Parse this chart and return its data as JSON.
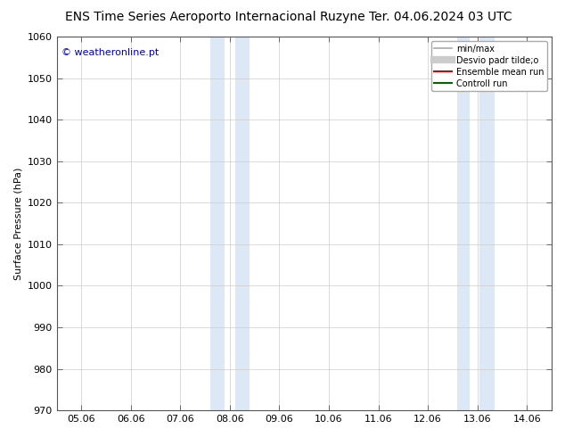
{
  "title_left": "ENS Time Series Aeroporto Internacional Ruzyne",
  "title_right": "Ter. 04.06.2024 03 UTC",
  "ylabel": "Surface Pressure (hPa)",
  "ylim": [
    970,
    1060
  ],
  "yticks": [
    970,
    980,
    990,
    1000,
    1010,
    1020,
    1030,
    1040,
    1050,
    1060
  ],
  "xtick_labels": [
    "05.06",
    "06.06",
    "07.06",
    "08.06",
    "09.06",
    "10.06",
    "11.06",
    "12.06",
    "13.06",
    "14.06"
  ],
  "xtick_positions": [
    0,
    1,
    2,
    3,
    4,
    5,
    6,
    7,
    8,
    9
  ],
  "shaded_bands": [
    {
      "x_start": 2.55,
      "x_end": 3.0,
      "x_end2": 3.5
    },
    {
      "x_start": 7.6,
      "x_end": 8.0,
      "x_end2": 8.4
    }
  ],
  "shade_color": "#dce8f5",
  "watermark_text": "© weatheronline.pt",
  "watermark_color": "#0000bb",
  "legend_entries": [
    {
      "label": "min/max",
      "color": "#aaaaaa",
      "lw": 1.2,
      "style": "line"
    },
    {
      "label": "Desvio padr tilde;o",
      "color": "#cccccc",
      "lw": 6,
      "style": "line"
    },
    {
      "label": "Ensemble mean run",
      "color": "#dd0000",
      "lw": 1.5,
      "style": "line"
    },
    {
      "label": "Controll run",
      "color": "#006600",
      "lw": 1.5,
      "style": "line"
    }
  ],
  "background_color": "#ffffff",
  "plot_bg_color": "#ffffff",
  "grid_color": "#cccccc",
  "title_fontsize": 10,
  "axis_label_fontsize": 8,
  "tick_fontsize": 8,
  "watermark_fontsize": 8,
  "legend_fontsize": 7
}
